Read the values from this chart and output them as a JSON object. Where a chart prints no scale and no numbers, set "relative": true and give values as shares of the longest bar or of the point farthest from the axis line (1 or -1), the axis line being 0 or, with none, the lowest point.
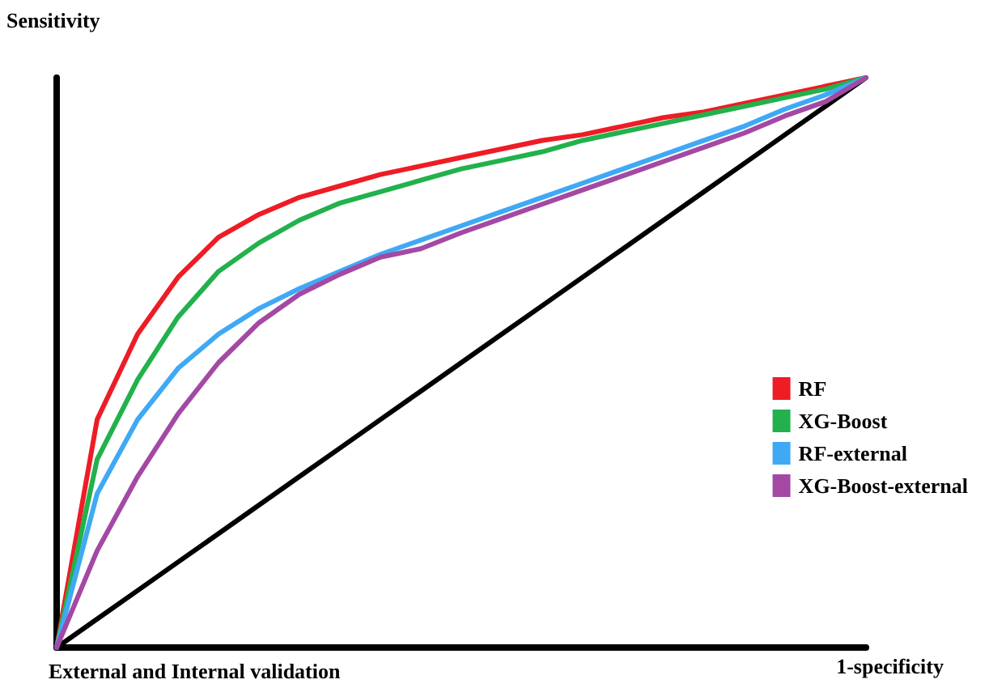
{
  "chart_data": {
    "type": "line",
    "relative": true,
    "ylabel": "Sensitivity",
    "xlabel": "1-specificity",
    "annotations": [
      "External and Internal validation"
    ],
    "categories": [
      null,
      null,
      null,
      null,
      null,
      null,
      null,
      null,
      null,
      null,
      null,
      null,
      null,
      null,
      null,
      null,
      null,
      null,
      null,
      null,
      null
    ],
    "series": [
      {
        "name": "RF",
        "color": "#ee1c25",
        "values": [
          0,
          0.4,
          0.55,
          0.65,
          0.72,
          0.76,
          0.79,
          0.81,
          0.83,
          0.845,
          0.86,
          0.875,
          0.89,
          0.9,
          0.915,
          0.93,
          0.94,
          0.955,
          0.97,
          0.985,
          1
        ]
      },
      {
        "name": "XG-Boost",
        "color": "#22b14c",
        "values": [
          0,
          0.33,
          0.47,
          0.58,
          0.66,
          0.71,
          0.75,
          0.78,
          0.8,
          0.82,
          0.84,
          0.855,
          0.87,
          0.89,
          0.905,
          0.92,
          0.935,
          0.95,
          0.965,
          0.98,
          1
        ]
      },
      {
        "name": "RF-external",
        "color": "#3fa9f5",
        "values": [
          0,
          0.27,
          0.4,
          0.49,
          0.55,
          0.595,
          0.63,
          0.66,
          0.69,
          0.715,
          0.74,
          0.765,
          0.79,
          0.815,
          0.84,
          0.865,
          0.89,
          0.915,
          0.945,
          0.97,
          1
        ]
      },
      {
        "name": "XG-Boost-external",
        "color": "#a349a4",
        "values": [
          0,
          0.17,
          0.3,
          0.41,
          0.5,
          0.57,
          0.62,
          0.655,
          0.685,
          0.7,
          0.728,
          0.753,
          0.778,
          0.803,
          0.828,
          0.853,
          0.878,
          0.903,
          0.933,
          0.958,
          1
        ]
      },
      {
        "color": "#000000",
        "values": [
          0,
          0.05,
          0.1,
          0.15,
          0.2,
          0.25,
          0.3,
          0.35,
          0.4,
          0.45,
          0.5,
          0.55,
          0.6,
          0.65,
          0.7,
          0.75,
          0.8,
          0.85,
          0.9,
          0.95,
          1
        ]
      }
    ],
    "legend": "right",
    "marker": "none",
    "line_style": "solid",
    "grid": false
  }
}
